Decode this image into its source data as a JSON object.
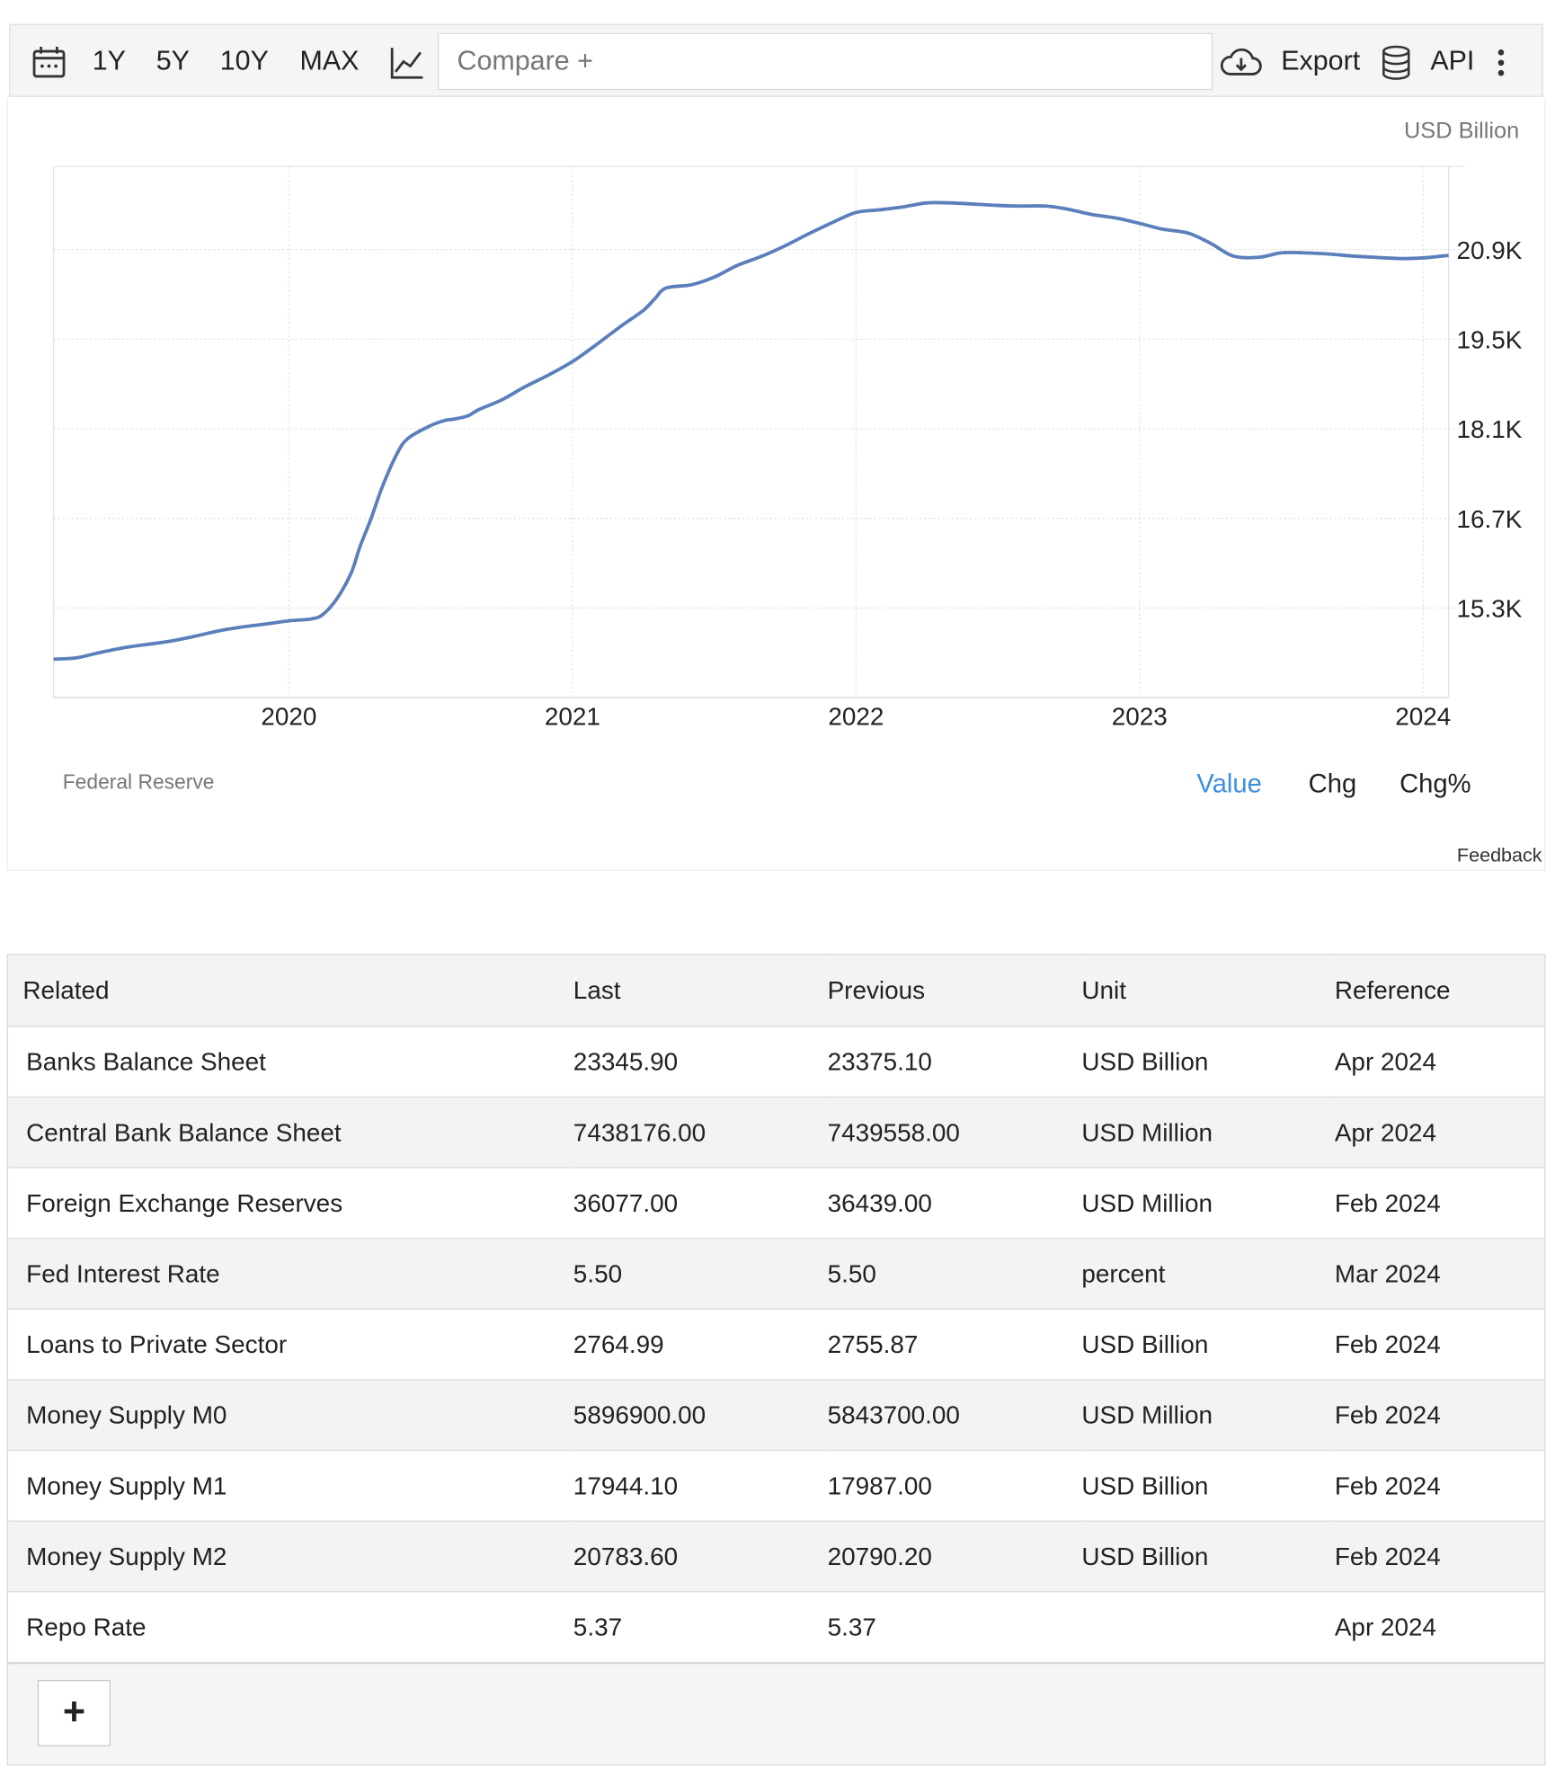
{
  "toolbar": {
    "icons": {
      "calendar": "calendar-icon",
      "chart_type": "line-chart-icon",
      "export": "cloud-download-icon",
      "api": "database-icon",
      "more": "more-vertical-icon"
    },
    "ranges": [
      "1Y",
      "5Y",
      "10Y",
      "MAX"
    ],
    "compare_placeholder": "Compare +",
    "export_label": "Export",
    "api_label": "API"
  },
  "chart": {
    "unit": "USD Billion",
    "source": "Federal Reserve",
    "modes": [
      "Value",
      "Chg",
      "Chg%"
    ],
    "active_mode": "Value",
    "feedback": "Feedback",
    "line_color": "#5b7fbb",
    "active_mode_color": "#3d8fe0"
  },
  "chart_data": {
    "type": "line",
    "x_ticks": [
      "2020",
      "2021",
      "2022",
      "2023",
      "2024"
    ],
    "y_ticks": [
      "15.3K",
      "16.7K",
      "18.1K",
      "19.5K",
      "20.9K"
    ],
    "y_tick_values": [
      15300,
      16700,
      18100,
      19500,
      20900
    ],
    "ylim": [
      13900,
      22200
    ],
    "xlim": [
      2019.17,
      2024.09
    ],
    "grid": true,
    "series": [
      {
        "x": [
          2019.17,
          2019.25,
          2019.33,
          2019.42,
          2019.5,
          2019.58,
          2019.67,
          2019.75,
          2019.83,
          2019.92,
          2020.0,
          2020.08,
          2020.12,
          2020.17,
          2020.22,
          2020.25,
          2020.29,
          2020.33,
          2020.38,
          2020.42,
          2020.5,
          2020.55,
          2020.58,
          2020.63,
          2020.67,
          2020.75,
          2020.83,
          2020.92,
          2021.0,
          2021.08,
          2021.17,
          2021.25,
          2021.29,
          2021.33,
          2021.42,
          2021.5,
          2021.58,
          2021.67,
          2021.75,
          2021.83,
          2021.92,
          2022.0,
          2022.08,
          2022.17,
          2022.25,
          2022.33,
          2022.42,
          2022.5,
          2022.58,
          2022.67,
          2022.75,
          2022.83,
          2022.92,
          2023.0,
          2023.08,
          2023.17,
          2023.25,
          2023.33,
          2023.42,
          2023.5,
          2023.58,
          2023.67,
          2023.75,
          2023.83,
          2023.92,
          2024.0,
          2024.09
        ],
        "y": [
          14500,
          14520,
          14600,
          14680,
          14730,
          14780,
          14860,
          14940,
          15000,
          15050,
          15100,
          15130,
          15200,
          15450,
          15850,
          16250,
          16700,
          17200,
          17700,
          17950,
          18150,
          18230,
          18250,
          18300,
          18400,
          18550,
          18750,
          18950,
          19150,
          19400,
          19700,
          19950,
          20130,
          20300,
          20350,
          20470,
          20650,
          20800,
          20960,
          21140,
          21330,
          21480,
          21520,
          21570,
          21630,
          21630,
          21610,
          21590,
          21580,
          21580,
          21530,
          21450,
          21390,
          21310,
          21220,
          21160,
          21000,
          20800,
          20780,
          20850,
          20850,
          20830,
          20800,
          20780,
          20760,
          20770,
          20810
        ]
      }
    ]
  },
  "table": {
    "headers": [
      "Related",
      "Last",
      "Previous",
      "Unit",
      "Reference"
    ],
    "rows": [
      [
        "Banks Balance Sheet",
        "23345.90",
        "23375.10",
        "USD Billion",
        "Apr 2024"
      ],
      [
        "Central Bank Balance Sheet",
        "7438176.00",
        "7439558.00",
        "USD Million",
        "Apr 2024"
      ],
      [
        "Foreign Exchange Reserves",
        "36077.00",
        "36439.00",
        "USD Million",
        "Feb 2024"
      ],
      [
        "Fed Interest Rate",
        "5.50",
        "5.50",
        "percent",
        "Mar 2024"
      ],
      [
        "Loans to Private Sector",
        "2764.99",
        "2755.87",
        "USD Billion",
        "Feb 2024"
      ],
      [
        "Money Supply M0",
        "5896900.00",
        "5843700.00",
        "USD Million",
        "Feb 2024"
      ],
      [
        "Money Supply M1",
        "17944.10",
        "17987.00",
        "USD Billion",
        "Feb 2024"
      ],
      [
        "Money Supply M2",
        "20783.60",
        "20790.20",
        "USD Billion",
        "Feb 2024"
      ],
      [
        "Repo Rate",
        "5.37",
        "5.37",
        "",
        "Apr 2024"
      ]
    ],
    "add_label": "+"
  }
}
